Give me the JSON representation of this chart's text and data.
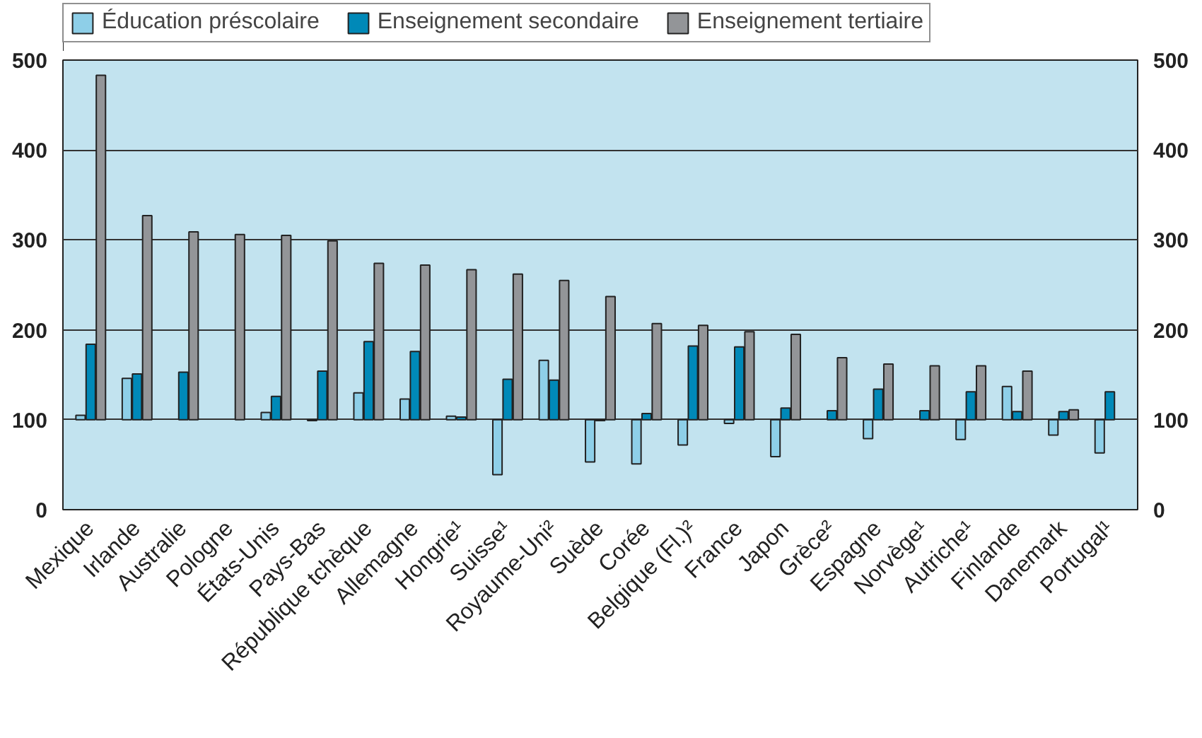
{
  "chart_data": {
    "type": "bar",
    "categories": [
      "Mexique",
      "Irlande",
      "Australie",
      "Pologne",
      "États-Unis",
      "Pays-Bas",
      "République tchèque",
      "Allemagne",
      "Hongrie¹",
      "Suisse¹",
      "Royaume-Uni²",
      "Suède",
      "Corée",
      "Belgique (Fl.)²",
      "France",
      "Japon",
      "Grèce²",
      "Espagne",
      "Norvège¹",
      "Autriche¹",
      "Finlande",
      "Danemark",
      "Portugal¹"
    ],
    "series": [
      {
        "name": "Éducation préscolaire",
        "color": "#8ecfe8",
        "base": [
          100,
          100,
          null,
          null,
          100,
          100,
          100,
          100,
          100,
          100,
          100,
          100,
          100,
          100,
          100,
          100,
          null,
          100,
          null,
          100,
          100,
          100,
          100
        ],
        "values": [
          5,
          46,
          null,
          null,
          8,
          -1,
          30,
          23,
          4,
          -61,
          66,
          -47,
          -49,
          -28,
          -4,
          -41,
          null,
          -21,
          null,
          -22,
          37,
          -17,
          -37
        ]
      },
      {
        "name": "Enseignement secondaire",
        "color": "#0089b8",
        "base": [
          100,
          100,
          100,
          null,
          100,
          100,
          100,
          100,
          100,
          100,
          100,
          100,
          100,
          100,
          100,
          100,
          100,
          100,
          100,
          100,
          100,
          100,
          100
        ],
        "values": [
          84,
          51,
          53,
          null,
          26,
          54,
          87,
          76,
          3,
          45,
          44,
          -1,
          7,
          82,
          81,
          13,
          10,
          34,
          10,
          31,
          9,
          9,
          31
        ]
      },
      {
        "name": "Enseignement tertiaire",
        "color": "#939598",
        "base": [
          100,
          100,
          100,
          100,
          100,
          100,
          100,
          100,
          100,
          100,
          100,
          100,
          100,
          100,
          100,
          100,
          100,
          100,
          100,
          100,
          100,
          100,
          null
        ],
        "values": [
          383,
          227,
          209,
          206,
          205,
          199,
          174,
          172,
          167,
          162,
          155,
          137,
          107,
          105,
          98,
          95,
          69,
          62,
          60,
          60,
          54,
          11,
          null
        ]
      }
    ],
    "ylim": [
      0,
      500
    ],
    "yticks": [
      0,
      100,
      200,
      300,
      400,
      500
    ],
    "y2lim": [
      0,
      500
    ],
    "y2ticks": [
      0,
      100,
      200,
      300,
      400,
      500
    ],
    "grid": "y",
    "legend": "top left"
  }
}
